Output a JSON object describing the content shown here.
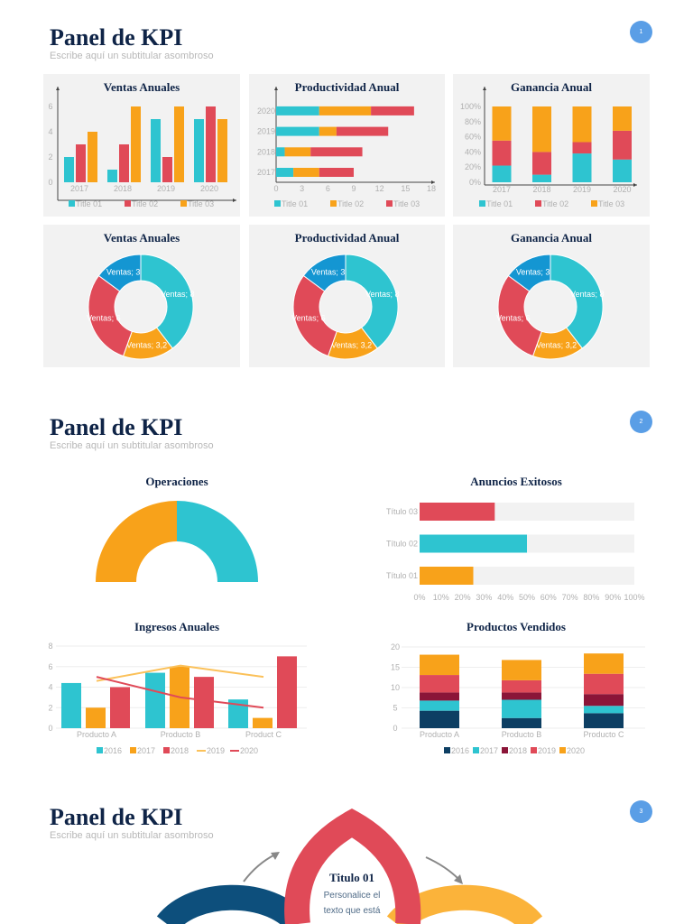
{
  "slides": [
    {
      "title": "Panel de KPI",
      "subtitle": "Escribe aquí un subtitular asombroso",
      "page": "1"
    },
    {
      "title": "Panel de KPI",
      "subtitle": "Escribe aquí un subtitular asombroso",
      "page": "2"
    },
    {
      "title": "Panel de KPI",
      "subtitle": "Escribe aquí un subtitular asombroso",
      "page": "3"
    }
  ],
  "colors": {
    "teal": "#2ec4d0",
    "red": "#e04a58",
    "orange": "#f8a21a",
    "blue": "#1496d2",
    "navy": "#0d3f63",
    "maroon": "#8b1538",
    "title": "#0f2447",
    "badge": "#5a9ee6"
  },
  "infographic": {
    "title": "Titulo 01",
    "text_line1": "Personalice el",
    "text_line2": "texto que está"
  },
  "chart_data": [
    {
      "id": "ventas",
      "type": "bar",
      "title": "Ventas Anuales",
      "categories": [
        "2017",
        "2018",
        "2019",
        "2020"
      ],
      "yticks": [
        "0",
        "2",
        "4",
        "6"
      ],
      "ylim": [
        0,
        6
      ],
      "series": [
        {
          "name": "Title 01",
          "values": [
            2,
            1,
            5,
            5
          ]
        },
        {
          "name": "Title 02",
          "values": [
            3,
            3,
            2,
            6
          ]
        },
        {
          "name": "Title 03",
          "values": [
            4,
            6,
            6,
            5
          ]
        }
      ],
      "legend": "bottom"
    },
    {
      "id": "productividad",
      "type": "bar",
      "orientation": "horizontal",
      "stacked": true,
      "title": "Productividad Anual",
      "categories": [
        "2017",
        "2018",
        "2019",
        "2020"
      ],
      "xticks": [
        "0",
        "3",
        "6",
        "9",
        "12",
        "15",
        "18"
      ],
      "xlim": [
        0,
        18
      ],
      "series": [
        {
          "name": "Title 01",
          "values": [
            2,
            1,
            5,
            5
          ]
        },
        {
          "name": "Title 02",
          "values": [
            3,
            3,
            2,
            6
          ]
        },
        {
          "name": "Title 03",
          "values": [
            4,
            6,
            6,
            5
          ]
        }
      ],
      "legend": "bottom"
    },
    {
      "id": "ganancia",
      "type": "bar",
      "stacked": "percent",
      "title": "Ganancia Anual",
      "categories": [
        "2017",
        "2018",
        "2019",
        "2020"
      ],
      "yticks": [
        "0%",
        "20%",
        "40%",
        "60%",
        "80%",
        "100%"
      ],
      "series": [
        {
          "name": "Title 01",
          "values": [
            22,
            10,
            38,
            30
          ]
        },
        {
          "name": "Title 02",
          "values": [
            33,
            30,
            15,
            38
          ]
        },
        {
          "name": "Title 03",
          "values": [
            45,
            60,
            47,
            32
          ]
        }
      ],
      "legend": "bottom"
    },
    {
      "id": "donut1",
      "type": "pie",
      "donut": true,
      "title": "Ventas Anuales",
      "slices": [
        {
          "label": "Ventas; 8",
          "value": 8
        },
        {
          "label": "Ventas; 3,2",
          "value": 3.2
        },
        {
          "label": "Ventas; 6",
          "value": 6
        },
        {
          "label": "Ventas; 3",
          "value": 3
        }
      ]
    },
    {
      "id": "donut2",
      "type": "pie",
      "donut": true,
      "title": "Productividad Anual",
      "slices": [
        {
          "label": "Ventas; 8",
          "value": 8
        },
        {
          "label": "Ventas; 3,2",
          "value": 3.2
        },
        {
          "label": "Ventas; 6",
          "value": 6
        },
        {
          "label": "Ventas; 3",
          "value": 3
        }
      ]
    },
    {
      "id": "donut3",
      "type": "pie",
      "donut": true,
      "title": "Ganancia Anual",
      "slices": [
        {
          "label": "Ventas; 8",
          "value": 8
        },
        {
          "label": "Ventas; 3,2",
          "value": 3.2
        },
        {
          "label": "Ventas; 6",
          "value": 6
        },
        {
          "label": "Ventas; 3",
          "value": 3
        }
      ]
    },
    {
      "id": "operaciones",
      "type": "pie",
      "donut": true,
      "half": true,
      "title": "Operaciones",
      "slices": [
        {
          "value": 50
        },
        {
          "value": 50
        }
      ]
    },
    {
      "id": "anuncios",
      "type": "bar",
      "orientation": "horizontal",
      "title": "Anuncios Exitosos",
      "categories": [
        "Título 01",
        "Título 02",
        "Título 03"
      ],
      "values": [
        25,
        50,
        35
      ],
      "xticks": [
        "0%",
        "10%",
        "20%",
        "30%",
        "40%",
        "50%",
        "60%",
        "70%",
        "80%",
        "90%",
        "100%"
      ],
      "xlim": [
        0,
        100
      ]
    },
    {
      "id": "ingresos",
      "type": "bar",
      "title": "Ingresos Anuales",
      "categories": [
        "Producto A",
        "Producto B",
        "Product C"
      ],
      "yticks": [
        "0",
        "2",
        "4",
        "6",
        "8"
      ],
      "ylim": [
        0,
        8
      ],
      "grid": true,
      "series": [
        {
          "name": "2016",
          "kind": "bar",
          "values": [
            4.4,
            5.4,
            2.8
          ]
        },
        {
          "name": "2017",
          "kind": "bar",
          "values": [
            2,
            6,
            1
          ]
        },
        {
          "name": "2018",
          "kind": "bar",
          "values": [
            4,
            5,
            7
          ]
        },
        {
          "name": "2019",
          "kind": "line",
          "values": [
            4.6,
            6.1,
            5
          ]
        },
        {
          "name": "2020",
          "kind": "line",
          "values": [
            5,
            3,
            2
          ]
        }
      ],
      "legend": "bottom"
    },
    {
      "id": "productos",
      "type": "bar",
      "stacked": true,
      "title": "Productos Vendidos",
      "categories": [
        "Producto A",
        "Producto B",
        "Producto C"
      ],
      "yticks": [
        "0",
        "5",
        "10",
        "15",
        "20"
      ],
      "ylim": [
        0,
        20
      ],
      "grid": true,
      "series": [
        {
          "name": "2016",
          "values": [
            4.3,
            2.5,
            3.7
          ]
        },
        {
          "name": "2017",
          "values": [
            2.5,
            4.5,
            1.8
          ]
        },
        {
          "name": "2018",
          "values": [
            2,
            1.8,
            2.9
          ]
        },
        {
          "name": "2019",
          "values": [
            4.3,
            3,
            5
          ]
        },
        {
          "name": "2020",
          "values": [
            5,
            5,
            5
          ]
        }
      ],
      "legend": "bottom"
    }
  ]
}
